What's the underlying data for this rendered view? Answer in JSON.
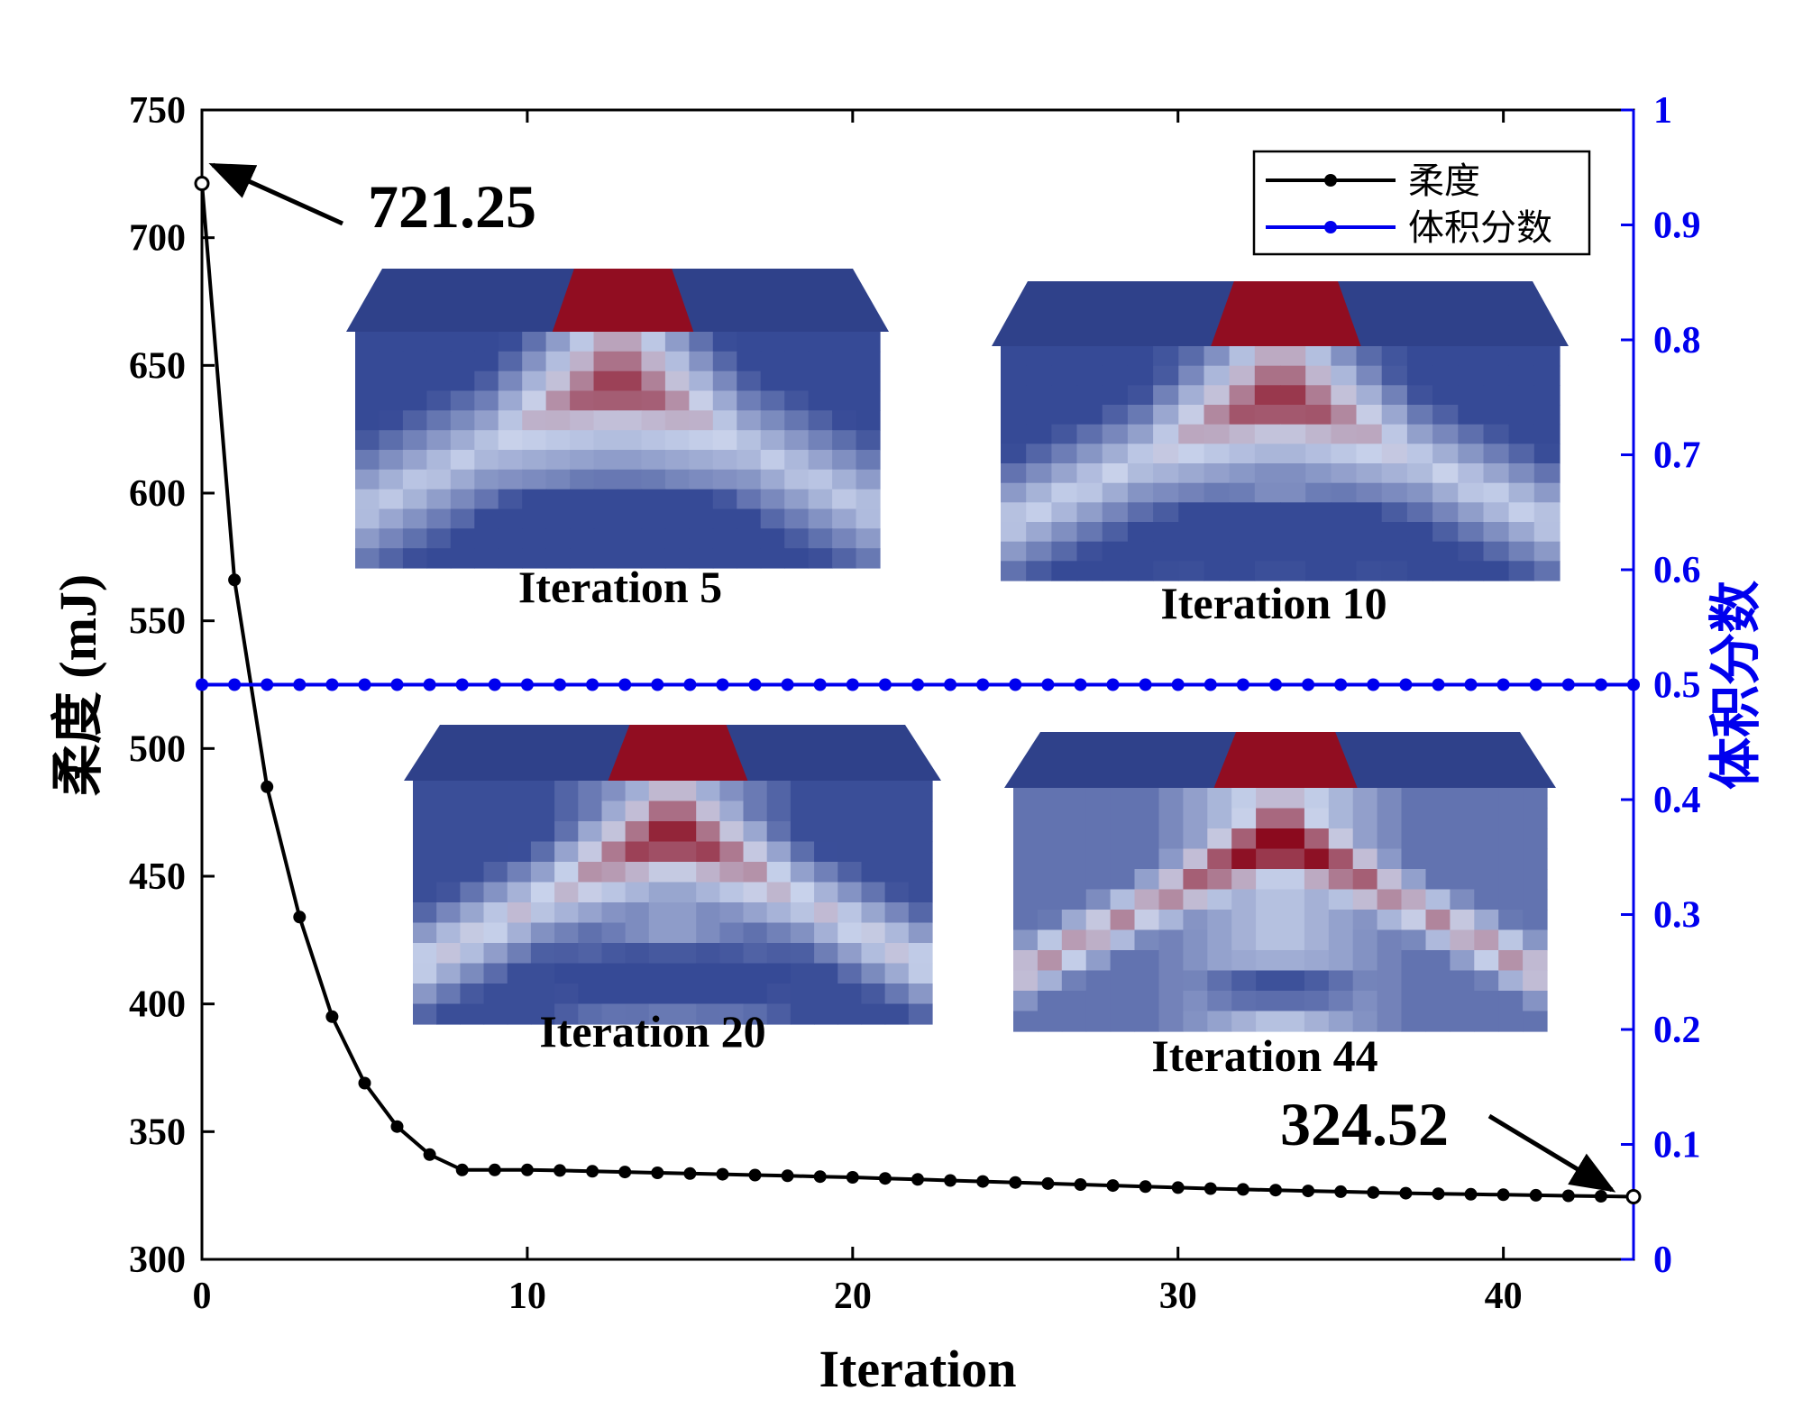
{
  "chart_data": {
    "type": "line",
    "xlabel": "Iteration",
    "ylabel": "柔度 (mJ)",
    "ylabel_right": "体积分数",
    "xlim": [
      0,
      44
    ],
    "ylim": [
      300,
      750
    ],
    "ylim_right": [
      0,
      1
    ],
    "x_ticks": [
      "0",
      "10",
      "20",
      "30",
      "40"
    ],
    "y_ticks": [
      "300",
      "350",
      "400",
      "450",
      "500",
      "550",
      "600",
      "650",
      "700",
      "750"
    ],
    "y_ticks_right": [
      "0",
      "0.1",
      "0.2",
      "0.3",
      "0.4",
      "0.5",
      "0.6",
      "0.7",
      "0.8",
      "0.9",
      "1"
    ],
    "legend_position": "top-right",
    "series": [
      {
        "name": "柔度",
        "axis": "left",
        "color": "#000000",
        "x": [
          0,
          1,
          2,
          3,
          4,
          5,
          6,
          7,
          8,
          9,
          10,
          11,
          12,
          13,
          14,
          15,
          16,
          17,
          18,
          19,
          20,
          21,
          22,
          23,
          24,
          25,
          26,
          27,
          28,
          29,
          30,
          31,
          32,
          33,
          34,
          35,
          36,
          37,
          38,
          39,
          40,
          41,
          42,
          43,
          44
        ],
        "values": [
          721.25,
          566,
          485,
          434,
          395,
          369,
          352,
          341,
          335,
          335,
          335,
          334.8,
          334.5,
          334.2,
          333.9,
          333.6,
          333.3,
          333,
          332.7,
          332.4,
          332.1,
          331.7,
          331.3,
          330.9,
          330.5,
          330.1,
          329.7,
          329.3,
          328.9,
          328.5,
          328.1,
          327.7,
          327.4,
          327.1,
          326.8,
          326.5,
          326.2,
          325.9,
          325.7,
          325.5,
          325.3,
          325.1,
          324.9,
          324.7,
          324.52
        ]
      },
      {
        "name": "体积分数",
        "axis": "right",
        "color": "#0000ee",
        "x": [
          0,
          1,
          2,
          3,
          4,
          5,
          6,
          7,
          8,
          9,
          10,
          11,
          12,
          13,
          14,
          15,
          16,
          17,
          18,
          19,
          20,
          21,
          22,
          23,
          24,
          25,
          26,
          27,
          28,
          29,
          30,
          31,
          32,
          33,
          34,
          35,
          36,
          37,
          38,
          39,
          40,
          41,
          42,
          43,
          44
        ],
        "values": [
          0.5,
          0.5,
          0.5,
          0.5,
          0.5,
          0.5,
          0.5,
          0.5,
          0.5,
          0.5,
          0.5,
          0.5,
          0.5,
          0.5,
          0.5,
          0.5,
          0.5,
          0.5,
          0.5,
          0.5,
          0.5,
          0.5,
          0.5,
          0.5,
          0.5,
          0.5,
          0.5,
          0.5,
          0.5,
          0.5,
          0.5,
          0.5,
          0.5,
          0.5,
          0.5,
          0.5,
          0.5,
          0.5,
          0.5,
          0.5,
          0.5,
          0.5,
          0.5,
          0.5,
          0.5
        ]
      }
    ],
    "annotations": [
      {
        "text": "721.25",
        "x": 0,
        "y": 721.25
      },
      {
        "text": "324.52",
        "x": 44,
        "y": 324.52
      }
    ],
    "insets": [
      {
        "caption": "Iteration 5",
        "stage": 5
      },
      {
        "caption": "Iteration 10",
        "stage": 10
      },
      {
        "caption": "Iteration 20",
        "stage": 20
      },
      {
        "caption": "Iteration 44",
        "stage": 44
      }
    ],
    "colors": {
      "solid": "#8c0a1e",
      "void": "#3a4f9b",
      "axis_left": "#000000",
      "axis_right": "#0000ee"
    }
  }
}
